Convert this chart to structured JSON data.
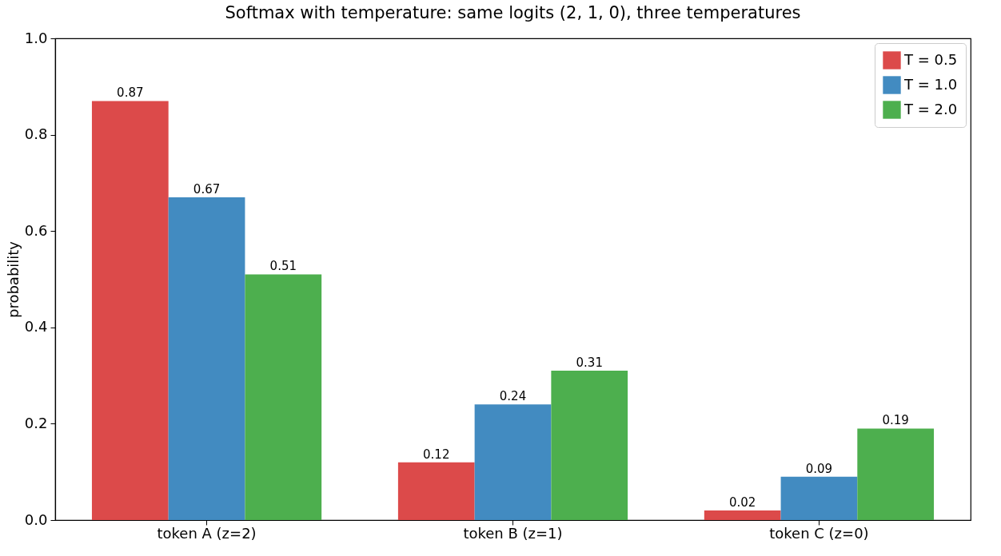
{
  "chart_data": {
    "type": "bar",
    "title": "Softmax with temperature: same logits (2, 1, 0), three temperatures",
    "ylabel": "probability",
    "categories": [
      "token A (z=2)",
      "token B (z=1)",
      "token C (z=0)"
    ],
    "series": [
      {
        "name": "T = 0.5",
        "color": "#dc4a4a",
        "values": [
          0.87,
          0.12,
          0.02
        ]
      },
      {
        "name": "T = 1.0",
        "color": "#428bc1",
        "values": [
          0.67,
          0.24,
          0.09
        ]
      },
      {
        "name": "T = 2.0",
        "color": "#4daf4e",
        "values": [
          0.51,
          0.31,
          0.19
        ]
      }
    ],
    "ylim": [
      0,
      1
    ],
    "yticks": [
      {
        "value": 0,
        "label": "0.0"
      },
      0.2,
      0.4,
      0.6,
      0.8,
      {
        "value": 1,
        "label": "1.0"
      }
    ],
    "data_labels": true,
    "legend": "top right",
    "grid": false
  }
}
